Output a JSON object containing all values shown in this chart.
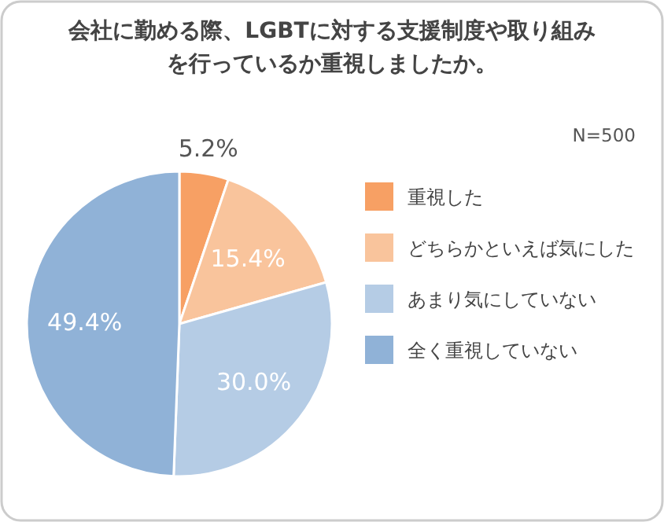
{
  "chart_data": {
    "type": "pie",
    "title": "会社に勤める際、LGBTに対する支援制度や取り組みを行っているか重視しましたか。",
    "annotations": [
      "N=500"
    ],
    "categories": [
      "重視した",
      "どちらかといえば気にした",
      "あまり気にしていない",
      "全く重視していない"
    ],
    "values": [
      5.2,
      15.4,
      30.0,
      49.4
    ],
    "colors": [
      "#f7a064",
      "#f9c49c",
      "#b5cce5",
      "#90b2d7"
    ],
    "value_labels": [
      "5.2%",
      "15.4%",
      "30.0%",
      "49.4%"
    ],
    "legend": "right"
  }
}
